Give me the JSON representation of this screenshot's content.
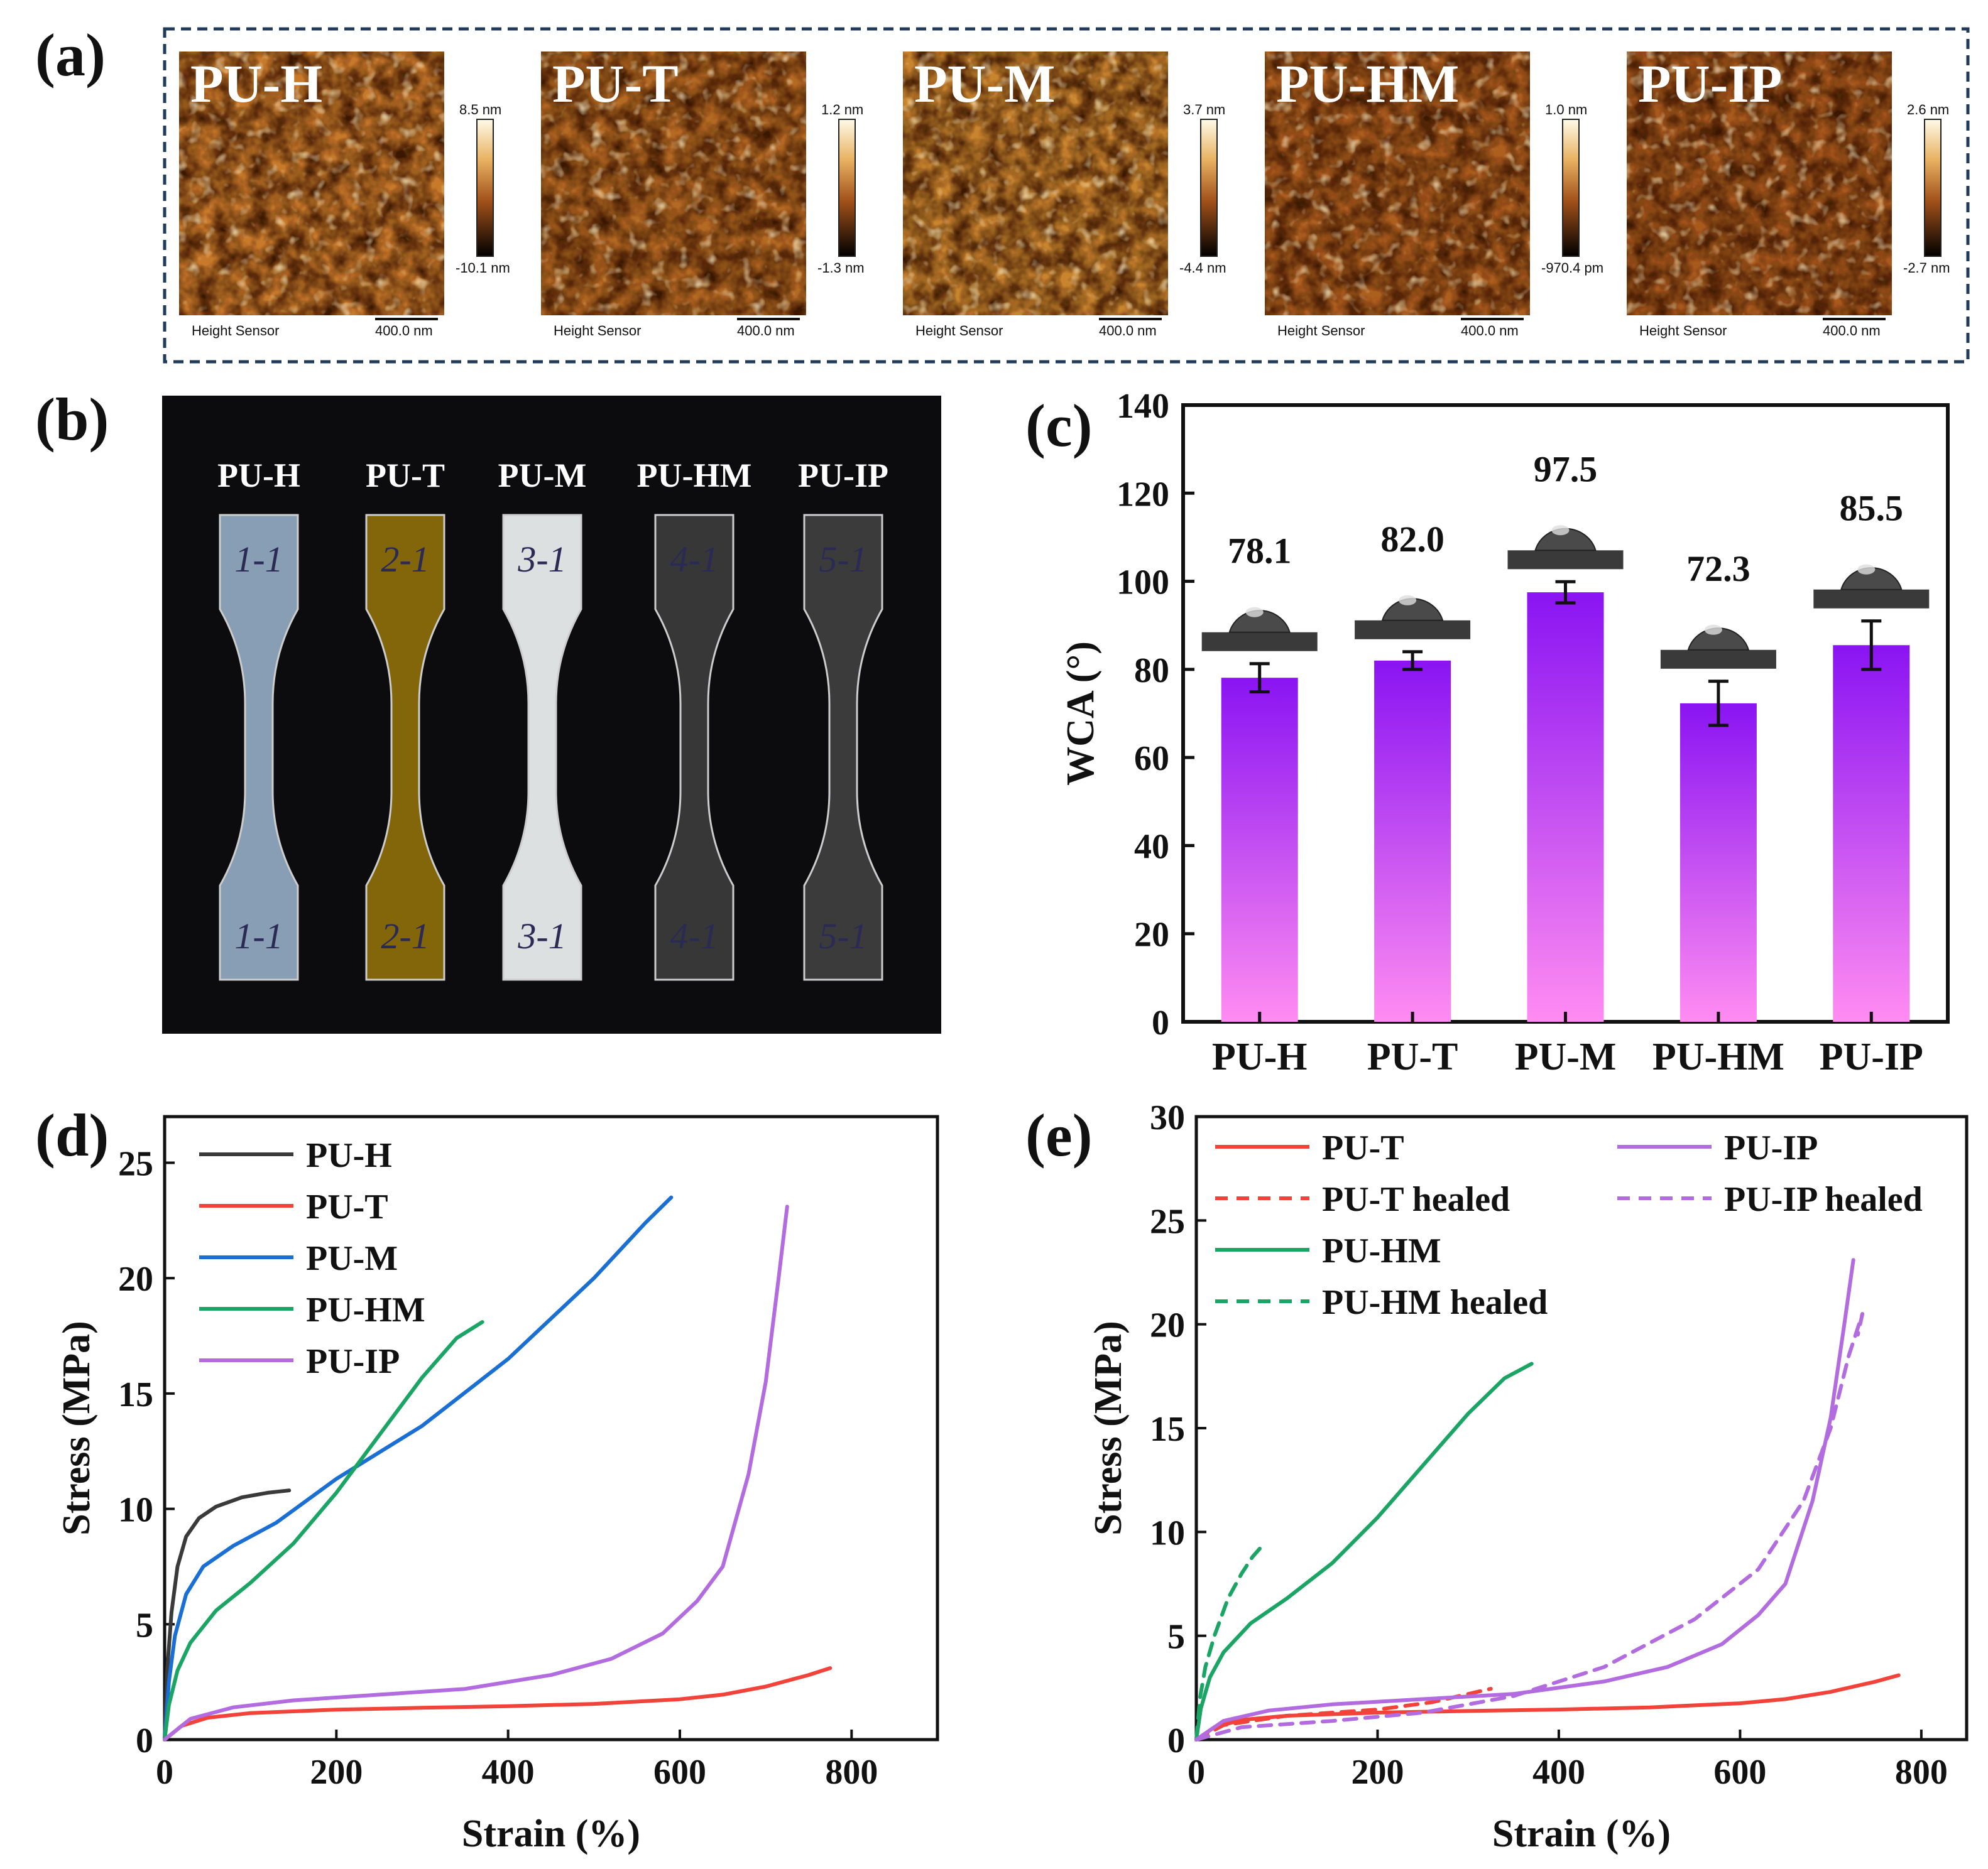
{
  "panel_labels": {
    "a": "(a)",
    "b": "(b)",
    "c": "(c)",
    "d": "(d)",
    "e": "(e)"
  },
  "afm": {
    "caption": "Height Sensor",
    "scale_bar": "400.0 nm",
    "images": [
      {
        "title": "PU-H",
        "max": "8.5 nm",
        "min": "-10.1 nm",
        "tone": "#c77a2a"
      },
      {
        "title": "PU-T",
        "max": "1.2 nm",
        "min": "-1.3 nm",
        "tone": "#b46a22"
      },
      {
        "title": "PU-M",
        "max": "3.7 nm",
        "min": "-4.4 nm",
        "tone": "#c8852e"
      },
      {
        "title": "PU-HM",
        "max": "1.0 nm",
        "min": "-970.4 pm",
        "tone": "#ad5f1e"
      },
      {
        "title": "PU-IP",
        "max": "2.6 nm",
        "min": "-2.7 nm",
        "tone": "#a85a1c"
      }
    ]
  },
  "photo": {
    "specimens": [
      {
        "label": "PU-H",
        "mark_top": "1-1",
        "mark_bottom": "1-1",
        "color": "#8fa6bd"
      },
      {
        "label": "PU-T",
        "mark_top": "2-1",
        "mark_bottom": "2-1",
        "color": "#8a6a0a"
      },
      {
        "label": "PU-M",
        "mark_top": "3-1",
        "mark_bottom": "3-1",
        "color": "#e9ecec"
      },
      {
        "label": "PU-HM",
        "mark_top": "4-1",
        "mark_bottom": "4-1",
        "color": "#3a3a3a"
      },
      {
        "label": "PU-IP",
        "mark_top": "5-1",
        "mark_bottom": "5-1",
        "color": "#3e3e3e"
      }
    ]
  },
  "chart_data": [
    {
      "id": "c",
      "type": "bar",
      "categories": [
        "PU-H",
        "PU-T",
        "PU-M",
        "PU-HM",
        "PU-IP"
      ],
      "values": [
        78.1,
        82.0,
        97.5,
        72.3,
        85.5
      ],
      "errors": [
        3.2,
        2.0,
        2.4,
        5.0,
        5.5
      ],
      "value_labels": [
        "78.1",
        "82.0",
        "97.5",
        "72.3",
        "85.5"
      ],
      "ylabel": "WCA (°)",
      "ylim": [
        0,
        140
      ],
      "yticks": [
        "0",
        "20",
        "40",
        "60",
        "80",
        "100",
        "120",
        "140"
      ],
      "colors": {
        "top": "#8a14f2",
        "bottom": "#ff8cf2"
      }
    },
    {
      "id": "d",
      "type": "line",
      "xlabel": "Strain (%)",
      "ylabel": "Stress (MPa)",
      "xlim": [
        0,
        900
      ],
      "ylim": [
        0,
        27
      ],
      "xticks": [
        "0",
        "200",
        "400",
        "600",
        "800"
      ],
      "yticks": [
        "0",
        "5",
        "10",
        "15",
        "20",
        "25"
      ],
      "series": [
        {
          "name": "PU-H",
          "color": "#3a3a3a",
          "dash": false,
          "points": [
            [
              0,
              0
            ],
            [
              3,
              3
            ],
            [
              8,
              5.5
            ],
            [
              15,
              7.5
            ],
            [
              25,
              8.8
            ],
            [
              40,
              9.6
            ],
            [
              60,
              10.1
            ],
            [
              90,
              10.5
            ],
            [
              120,
              10.7
            ],
            [
              145,
              10.8
            ]
          ]
        },
        {
          "name": "PU-T",
          "color": "#f2433b",
          "dash": false,
          "points": [
            [
              0,
              0
            ],
            [
              20,
              0.6
            ],
            [
              50,
              0.95
            ],
            [
              100,
              1.15
            ],
            [
              200,
              1.3
            ],
            [
              300,
              1.38
            ],
            [
              400,
              1.45
            ],
            [
              500,
              1.55
            ],
            [
              600,
              1.75
            ],
            [
              650,
              1.95
            ],
            [
              700,
              2.3
            ],
            [
              750,
              2.8
            ],
            [
              775,
              3.1
            ]
          ]
        },
        {
          "name": "PU-M",
          "color": "#1a6fd4",
          "dash": false,
          "points": [
            [
              0,
              0
            ],
            [
              5,
              2.5
            ],
            [
              12,
              4.5
            ],
            [
              25,
              6.3
            ],
            [
              45,
              7.5
            ],
            [
              80,
              8.4
            ],
            [
              130,
              9.4
            ],
            [
              200,
              11.3
            ],
            [
              300,
              13.6
            ],
            [
              400,
              16.5
            ],
            [
              500,
              20
            ],
            [
              560,
              22.4
            ],
            [
              590,
              23.5
            ]
          ]
        },
        {
          "name": "PU-HM",
          "color": "#1aa564",
          "dash": false,
          "points": [
            [
              0,
              0
            ],
            [
              5,
              1.5
            ],
            [
              15,
              3
            ],
            [
              30,
              4.2
            ],
            [
              60,
              5.6
            ],
            [
              100,
              6.8
            ],
            [
              150,
              8.5
            ],
            [
              200,
              10.7
            ],
            [
              250,
              13.2
            ],
            [
              300,
              15.7
            ],
            [
              340,
              17.4
            ],
            [
              370,
              18.1
            ]
          ]
        },
        {
          "name": "PU-IP",
          "color": "#b36be0",
          "dash": false,
          "points": [
            [
              0,
              0
            ],
            [
              30,
              0.9
            ],
            [
              80,
              1.4
            ],
            [
              150,
              1.7
            ],
            [
              250,
              1.95
            ],
            [
              350,
              2.2
            ],
            [
              450,
              2.8
            ],
            [
              520,
              3.5
            ],
            [
              580,
              4.6
            ],
            [
              620,
              6
            ],
            [
              650,
              7.5
            ],
            [
              680,
              11.5
            ],
            [
              700,
              15.5
            ],
            [
              715,
              20
            ],
            [
              725,
              23.1
            ]
          ]
        }
      ]
    },
    {
      "id": "e",
      "type": "line",
      "xlabel": "Strain (%)",
      "ylabel": "Stress (MPa)",
      "xlim": [
        0,
        850
      ],
      "ylim": [
        0,
        30
      ],
      "xticks": [
        "0",
        "200",
        "400",
        "600",
        "800"
      ],
      "yticks": [
        "0",
        "5",
        "10",
        "15",
        "20",
        "25",
        "30"
      ],
      "series": [
        {
          "name": "PU-T",
          "color": "#f2433b",
          "dash": false,
          "points": [
            [
              0,
              0
            ],
            [
              20,
              0.6
            ],
            [
              50,
              0.95
            ],
            [
              100,
              1.15
            ],
            [
              200,
              1.3
            ],
            [
              300,
              1.38
            ],
            [
              400,
              1.45
            ],
            [
              500,
              1.55
            ],
            [
              600,
              1.75
            ],
            [
              650,
              1.95
            ],
            [
              700,
              2.3
            ],
            [
              750,
              2.8
            ],
            [
              775,
              3.1
            ]
          ]
        },
        {
          "name": "PU-T healed",
          "color": "#f2433b",
          "dash": true,
          "points": [
            [
              0,
              0
            ],
            [
              30,
              0.7
            ],
            [
              100,
              1.15
            ],
            [
              200,
              1.45
            ],
            [
              260,
              1.8
            ],
            [
              300,
              2.2
            ],
            [
              325,
              2.45
            ]
          ]
        },
        {
          "name": "PU-HM",
          "color": "#1aa564",
          "dash": false,
          "points": [
            [
              0,
              0
            ],
            [
              5,
              1.5
            ],
            [
              15,
              3
            ],
            [
              30,
              4.2
            ],
            [
              60,
              5.6
            ],
            [
              100,
              6.8
            ],
            [
              150,
              8.5
            ],
            [
              200,
              10.7
            ],
            [
              250,
              13.2
            ],
            [
              300,
              15.7
            ],
            [
              340,
              17.4
            ],
            [
              370,
              18.1
            ]
          ]
        },
        {
          "name": "PU-HM healed",
          "color": "#1aa564",
          "dash": true,
          "points": [
            [
              0,
              0
            ],
            [
              4,
              2
            ],
            [
              10,
              3.5
            ],
            [
              20,
              5
            ],
            [
              35,
              6.8
            ],
            [
              50,
              8
            ],
            [
              62,
              8.8
            ],
            [
              70,
              9.2
            ],
            [
              75,
              9.1
            ]
          ]
        },
        {
          "name": "PU-IP",
          "color": "#b36be0",
          "dash": false,
          "points": [
            [
              0,
              0
            ],
            [
              30,
              0.9
            ],
            [
              80,
              1.4
            ],
            [
              150,
              1.7
            ],
            [
              250,
              1.95
            ],
            [
              350,
              2.2
            ],
            [
              450,
              2.8
            ],
            [
              520,
              3.5
            ],
            [
              580,
              4.6
            ],
            [
              620,
              6
            ],
            [
              650,
              7.5
            ],
            [
              680,
              11.5
            ],
            [
              700,
              15.5
            ],
            [
              715,
              20
            ],
            [
              725,
              23.1
            ]
          ]
        },
        {
          "name": "PU-IP healed",
          "color": "#b36be0",
          "dash": true,
          "points": [
            [
              0,
              0
            ],
            [
              50,
              0.6
            ],
            [
              150,
              0.9
            ],
            [
              250,
              1.3
            ],
            [
              350,
              2.1
            ],
            [
              450,
              3.5
            ],
            [
              550,
              5.8
            ],
            [
              620,
              8.2
            ],
            [
              670,
              11.5
            ],
            [
              700,
              15
            ],
            [
              720,
              18.5
            ],
            [
              735,
              20.5
            ],
            [
              730,
              19.5
            ]
          ]
        }
      ]
    }
  ]
}
